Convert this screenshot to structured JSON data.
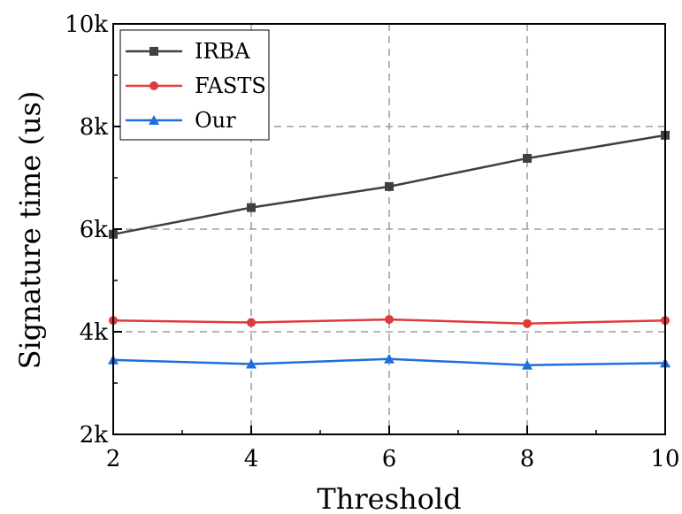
{
  "chart_data": {
    "type": "line",
    "xlabel": "Threshold",
    "ylabel": "Signature time (us)",
    "x": [
      2,
      4,
      6,
      8,
      10
    ],
    "xlim": [
      2,
      10
    ],
    "ylim": [
      2000,
      10000
    ],
    "xticks": [
      2,
      4,
      6,
      8,
      10
    ],
    "xtick_labels": [
      "2",
      "4",
      "6",
      "8",
      "10"
    ],
    "yticks": [
      2000,
      4000,
      6000,
      8000,
      10000
    ],
    "ytick_labels": [
      "2k",
      "4k",
      "6k",
      "8k",
      "10k"
    ],
    "grid": true,
    "legend_position": "top-left",
    "series": [
      {
        "name": "IRBA",
        "marker": "square",
        "color": "#404040",
        "values": [
          5900,
          6420,
          6830,
          7380,
          7830
        ]
      },
      {
        "name": "FASTS",
        "marker": "circle",
        "color": "#e03a3a",
        "values": [
          4220,
          4180,
          4240,
          4160,
          4220
        ]
      },
      {
        "name": "Our",
        "marker": "triangle",
        "color": "#1e6fd9",
        "values": [
          3450,
          3370,
          3470,
          3350,
          3390
        ]
      }
    ]
  }
}
